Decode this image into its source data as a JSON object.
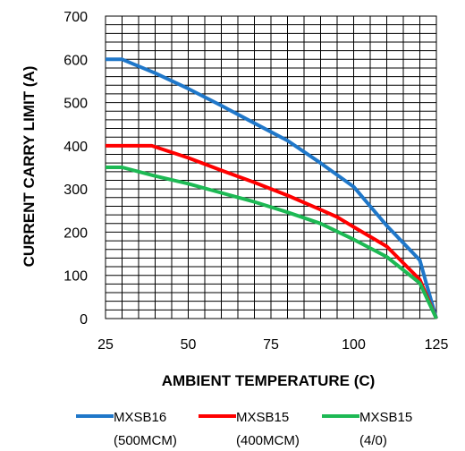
{
  "chart_data": {
    "type": "line",
    "xlabel": "AMBIENT TEMPERATURE (C)",
    "ylabel": "CURRENT CARRY LIMIT (A)",
    "xlim": [
      25,
      125
    ],
    "ylim": [
      0,
      700
    ],
    "xticks": [
      25,
      50,
      75,
      100,
      125
    ],
    "yticks": [
      0,
      100,
      200,
      300,
      400,
      500,
      600,
      700
    ],
    "grid": true,
    "legend_position": "bottom",
    "series": [
      {
        "name_line1": "MXSB16",
        "name_line2": "(500MCM)",
        "color": "#1F77C9",
        "x": [
          25,
          30,
          40,
          50,
          60,
          70,
          80,
          90,
          100,
          105,
          110,
          115,
          120,
          122,
          125
        ],
        "y": [
          600,
          600,
          568,
          532,
          493,
          452,
          412,
          360,
          305,
          260,
          215,
          175,
          135,
          80,
          0
        ]
      },
      {
        "name_line1": "MXSB15",
        "name_line2": "(400MCM)",
        "color": "#FF0000",
        "x": [
          25,
          30,
          39,
          50,
          60,
          70,
          80,
          90,
          95,
          100,
          110,
          120,
          125
        ],
        "y": [
          400,
          400,
          400,
          372,
          343,
          315,
          285,
          252,
          235,
          212,
          167,
          90,
          0
        ]
      },
      {
        "name_line1": "MXSB15",
        "name_line2": "(4/0)",
        "color": "#1DB954",
        "x": [
          25,
          30,
          40,
          50,
          60,
          70,
          80,
          90,
          100,
          110,
          120,
          125
        ],
        "y": [
          350,
          350,
          330,
          312,
          291,
          270,
          246,
          220,
          183,
          143,
          82,
          0
        ]
      }
    ]
  }
}
